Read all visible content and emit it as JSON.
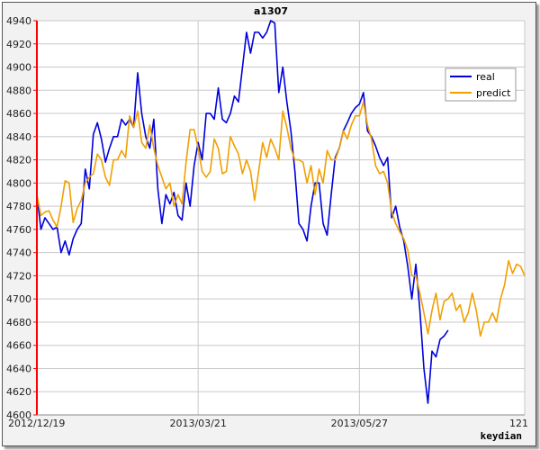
{
  "chart_data": {
    "type": "line",
    "title": "a1307",
    "xlabel": "keydian",
    "ylabel": "",
    "ylim": [
      4600,
      4940
    ],
    "yticks": [
      4600,
      4620,
      4640,
      4660,
      4680,
      4700,
      4720,
      4740,
      4760,
      4780,
      4800,
      4820,
      4840,
      4860,
      4880,
      4900,
      4920,
      4940
    ],
    "xlim": [
      0,
      121
    ],
    "xtick_labels": [
      {
        "x": 0,
        "label": "2012/12/19"
      },
      {
        "x": 40,
        "label": "2013/03/21"
      },
      {
        "x": 80,
        "label": "2013/05/27"
      },
      {
        "x": 121,
        "label": "121"
      }
    ],
    "grid": true,
    "legend": "top-right",
    "colors": {
      "real": "#0000dd",
      "predict": "#f0a000",
      "axis": "#ff0000",
      "grid": "#c8c8c8"
    },
    "series": [
      {
        "name": "real",
        "values": [
          4790,
          4760,
          4770,
          4765,
          4760,
          4762,
          4740,
          4750,
          4738,
          4752,
          4760,
          4765,
          4812,
          4795,
          4842,
          4852,
          4838,
          4818,
          4830,
          4840,
          4840,
          4855,
          4850,
          4855,
          4848,
          4895,
          4860,
          4840,
          4830,
          4855,
          4795,
          4765,
          4790,
          4782,
          4792,
          4772,
          4768,
          4800,
          4780,
          4815,
          4835,
          4820,
          4860,
          4860,
          4855,
          4882,
          4855,
          4852,
          4860,
          4875,
          4870,
          4900,
          4930,
          4912,
          4930,
          4930,
          4925,
          4930,
          4940,
          4938,
          4878,
          4900,
          4870,
          4845,
          4810,
          4765,
          4760,
          4750,
          4780,
          4800,
          4800,
          4765,
          4755,
          4790,
          4822,
          4830,
          4845,
          4852,
          4860,
          4865,
          4868,
          4878,
          4845,
          4840,
          4832,
          4822,
          4815,
          4822,
          4770,
          4780,
          4762,
          4750,
          4728,
          4700,
          4730,
          4690,
          4640,
          4610,
          4655,
          4650,
          4665,
          4668,
          4673
        ]
      },
      {
        "name": "predict",
        "values": [
          4790,
          4772,
          4775,
          4776,
          4768,
          4762,
          4780,
          4802,
          4800,
          4766,
          4778,
          4785,
          4800,
          4805,
          4808,
          4825,
          4820,
          4805,
          4798,
          4820,
          4820,
          4828,
          4822,
          4858,
          4848,
          4862,
          4835,
          4830,
          4850,
          4830,
          4815,
          4805,
          4795,
          4800,
          4780,
          4790,
          4782,
          4818,
          4846,
          4846,
          4830,
          4810,
          4805,
          4810,
          4838,
          4830,
          4808,
          4810,
          4840,
          4832,
          4825,
          4808,
          4820,
          4810,
          4785,
          4810,
          4835,
          4822,
          4838,
          4830,
          4820,
          4862,
          4848,
          4830,
          4820,
          4820,
          4818,
          4800,
          4815,
          4790,
          4812,
          4800,
          4828,
          4820,
          4820,
          4830,
          4845,
          4838,
          4850,
          4858,
          4858,
          4870,
          4850,
          4838,
          4815,
          4808,
          4810,
          4800,
          4775,
          4765,
          4758,
          4752,
          4742,
          4720,
          4720,
          4705,
          4688,
          4670,
          4690,
          4705,
          4682,
          4698,
          4700,
          4705,
          4690,
          4695,
          4680,
          4688,
          4705,
          4690,
          4668,
          4680,
          4680,
          4688,
          4680,
          4700,
          4712,
          4733,
          4722,
          4730,
          4728,
          4720
        ]
      }
    ]
  }
}
